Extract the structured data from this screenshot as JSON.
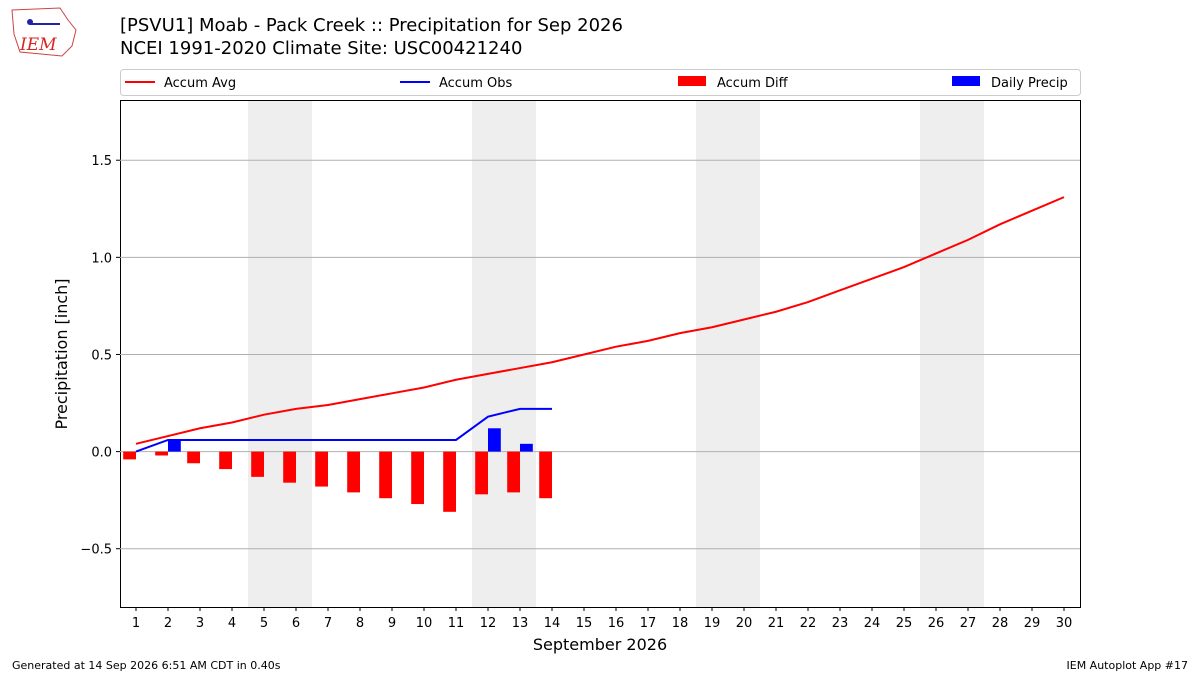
{
  "logo": "IEM",
  "footer": {
    "left": "Generated at 14 Sep 2026 6:51 AM CDT in 0.40s",
    "right": "IEM Autoplot App #17"
  },
  "chart_data": {
    "type": "line",
    "title": "[PSVU1] Moab - Pack Creek :: Precipitation for Sep 2026",
    "subtitle": "NCEI 1991-2020 Climate Site: USC00421240",
    "xlabel": "September 2026",
    "ylabel": "Precipitation [inch]",
    "x": [
      1,
      2,
      3,
      4,
      5,
      6,
      7,
      8,
      9,
      10,
      11,
      12,
      13,
      14,
      15,
      16,
      17,
      18,
      19,
      20,
      21,
      22,
      23,
      24,
      25,
      26,
      27,
      28,
      29,
      30
    ],
    "xlim": [
      0.5,
      30.5
    ],
    "xticks": [
      1,
      2,
      3,
      4,
      5,
      6,
      7,
      8,
      9,
      10,
      11,
      12,
      13,
      14,
      15,
      16,
      17,
      18,
      19,
      20,
      21,
      22,
      23,
      24,
      25,
      26,
      27,
      28,
      29,
      30
    ],
    "ylim": [
      -0.8,
      1.81
    ],
    "yticks": [
      {
        "value": -0.5,
        "label": "−0.5"
      },
      {
        "value": 0,
        "label": "0.0"
      },
      0.5,
      {
        "value": 1,
        "label": "1.0"
      },
      1.5
    ],
    "grid": true,
    "series": [
      {
        "name": "Accum Avg",
        "type": "line",
        "color": "#ff0000",
        "values": [
          0.04,
          0.08,
          0.12,
          0.15,
          0.19,
          0.22,
          0.24,
          0.27,
          0.3,
          0.33,
          0.37,
          0.4,
          0.43,
          0.46,
          0.5,
          0.54,
          0.57,
          0.61,
          0.64,
          0.68,
          0.72,
          0.77,
          0.83,
          0.89,
          0.95,
          1.02,
          1.09,
          1.17,
          1.24,
          1.31
        ]
      },
      {
        "name": "Accum Obs",
        "type": "line",
        "color": "#0000ff",
        "values": [
          0.0,
          0.06,
          0.06,
          0.06,
          0.06,
          0.06,
          0.06,
          0.06,
          0.06,
          0.06,
          0.06,
          0.18,
          0.22,
          0.22,
          null,
          null,
          null,
          null,
          null,
          null,
          null,
          null,
          null,
          null,
          null,
          null,
          null,
          null,
          null,
          null
        ]
      },
      {
        "name": "Accum Diff",
        "type": "bar",
        "color": "#ff0000",
        "values": [
          -0.04,
          -0.02,
          -0.06,
          -0.09,
          -0.13,
          -0.16,
          -0.18,
          -0.21,
          -0.24,
          -0.27,
          -0.31,
          -0.22,
          -0.21,
          -0.24,
          null,
          null,
          null,
          null,
          null,
          null,
          null,
          null,
          null,
          null,
          null,
          null,
          null,
          null,
          null,
          null
        ]
      },
      {
        "name": "Daily Precip",
        "type": "bar",
        "color": "#0000ff",
        "values": [
          0,
          0.06,
          0,
          0,
          0,
          0,
          0,
          0,
          0,
          0,
          0,
          0.12,
          0.04,
          0,
          null,
          null,
          null,
          null,
          null,
          null,
          null,
          null,
          null,
          null,
          null,
          null,
          null,
          null,
          null,
          null
        ]
      }
    ]
  }
}
